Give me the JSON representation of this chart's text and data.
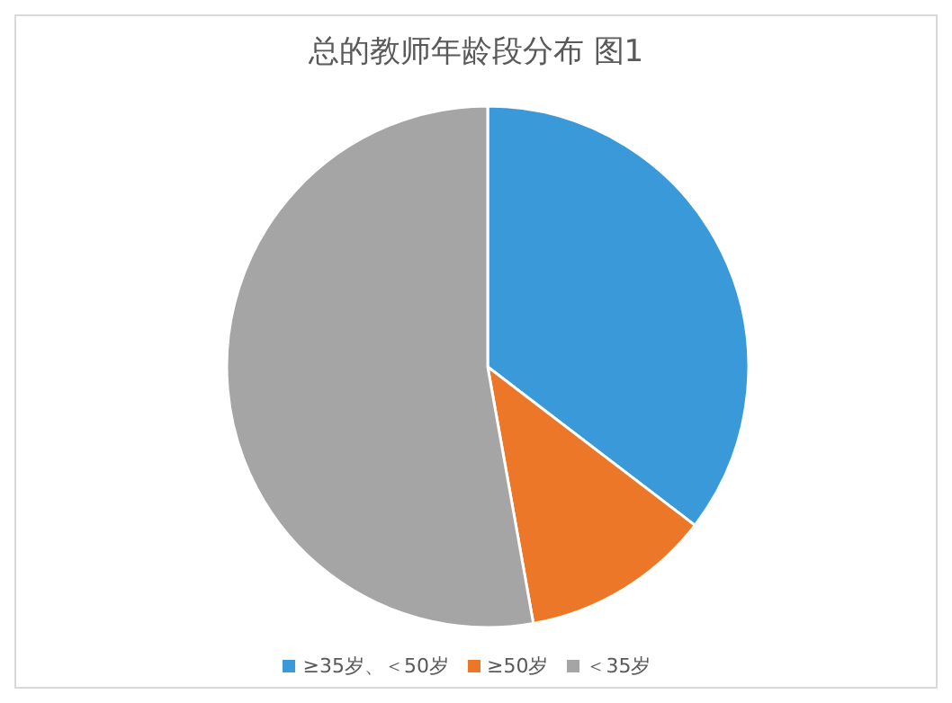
{
  "chart_data": {
    "type": "pie",
    "title": "总的教师年龄段分布 图1",
    "categories": [
      "≥35岁、＜50岁",
      "≥50岁",
      "＜35岁"
    ],
    "values": [
      35.4,
      11.8,
      52.8
    ],
    "colors": [
      "#3a9ad9",
      "#ec7728",
      "#a5a5a5"
    ],
    "legend": "bottom"
  }
}
